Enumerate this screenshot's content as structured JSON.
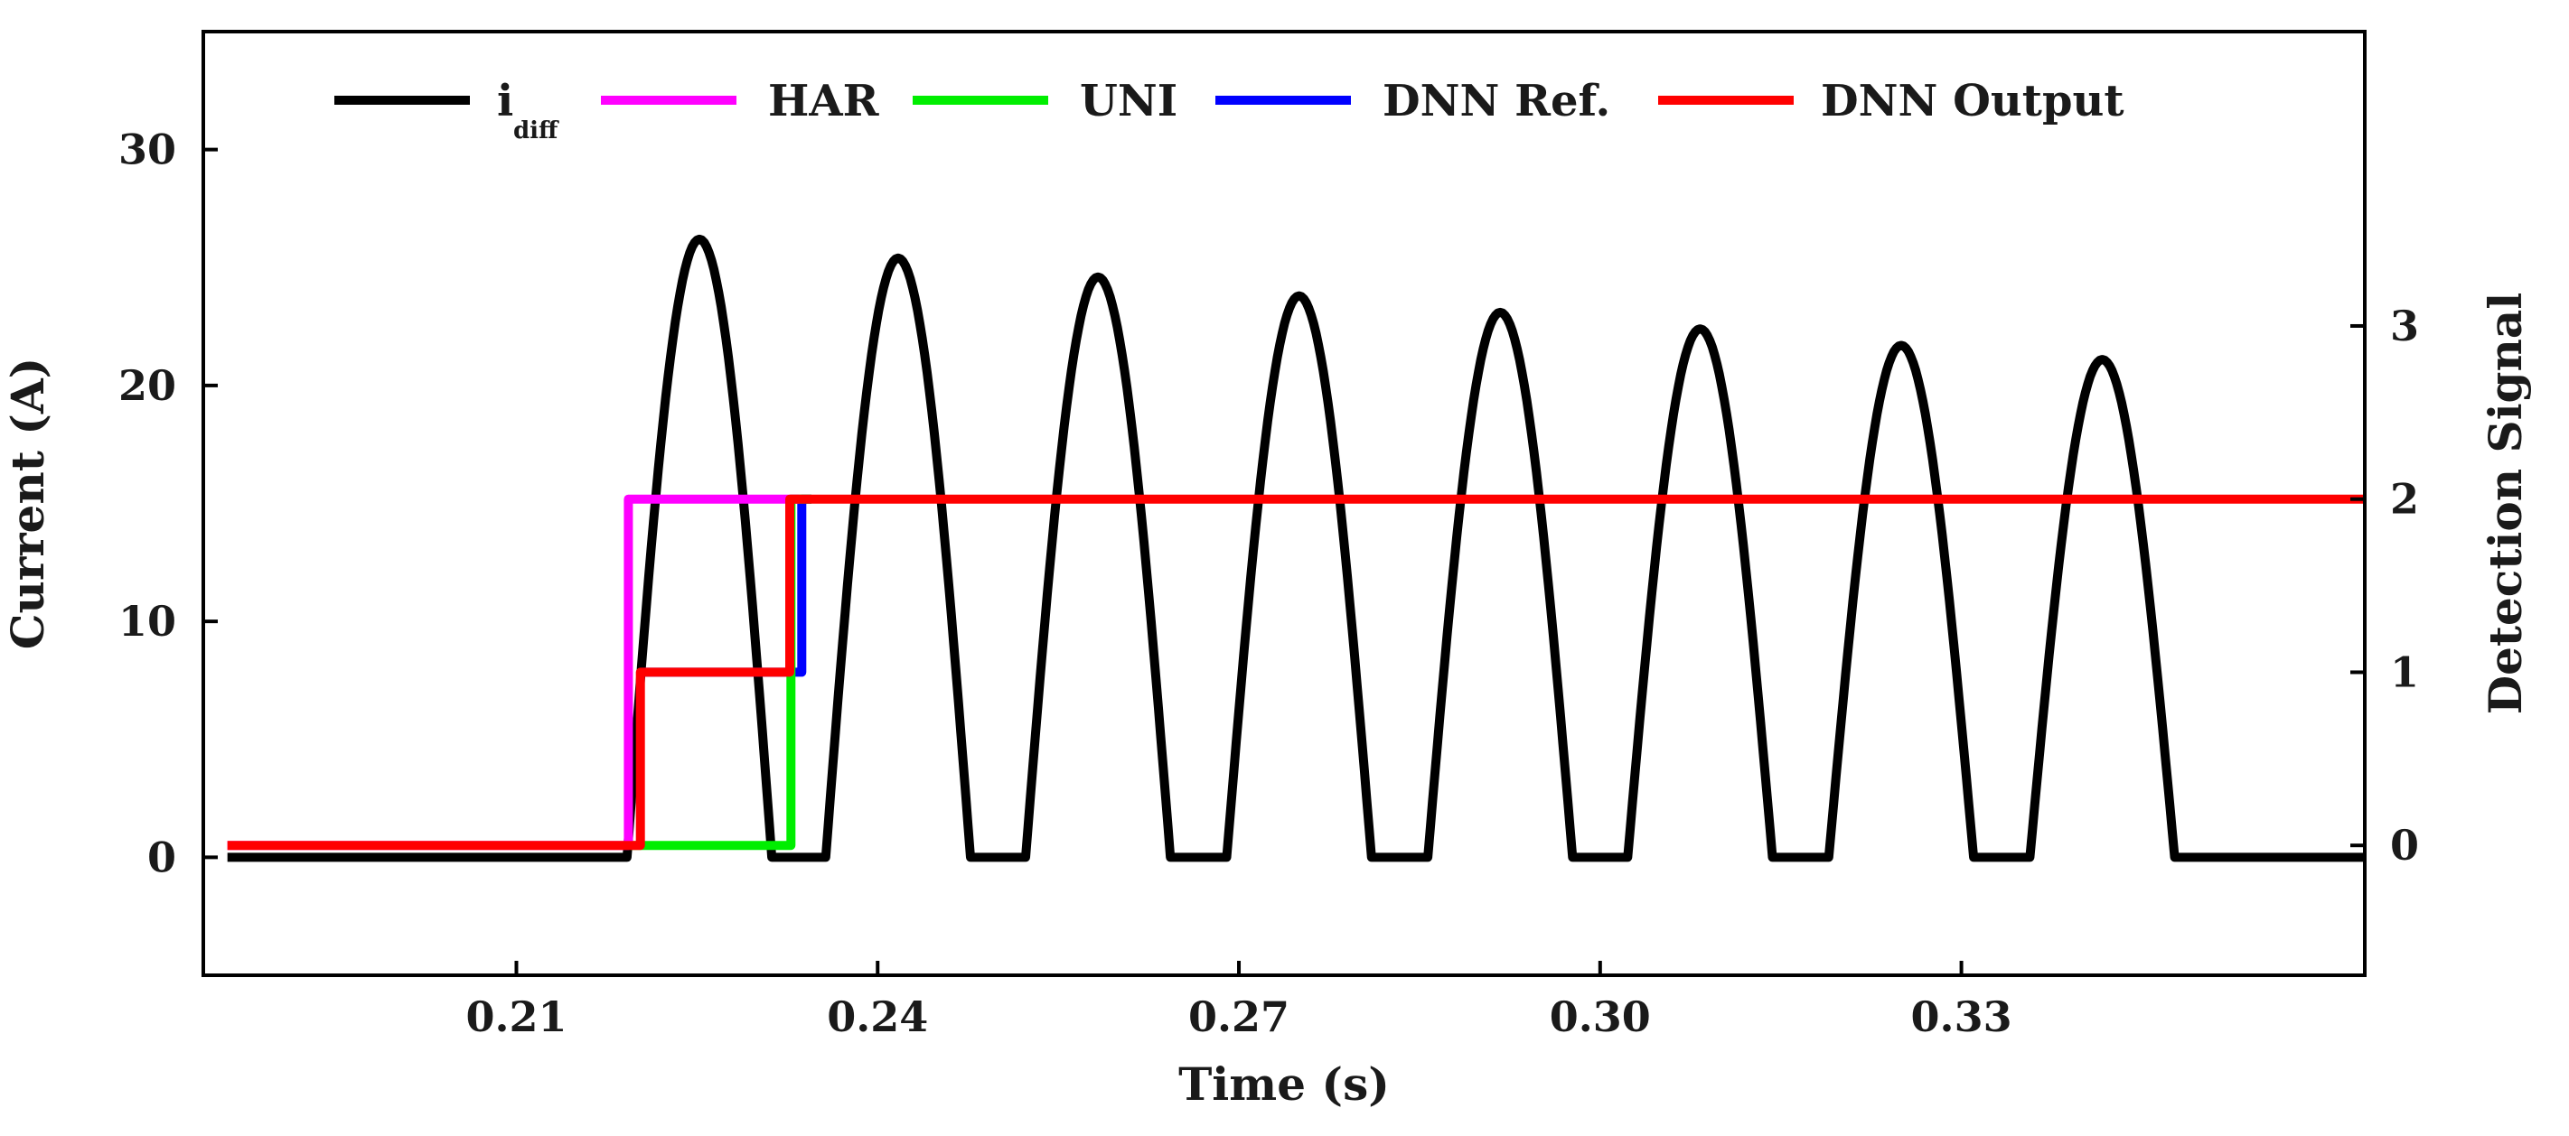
{
  "chart_data": {
    "type": "line",
    "title": "",
    "xlabel": "Time (s)",
    "ylabel": "Current (A)",
    "y2label": "Detection Signal",
    "xlim": [
      0.184,
      0.3635
    ],
    "ylim": [
      -5,
      35
    ],
    "y2lim": [
      -0.75,
      4.7
    ],
    "xticks": [
      0.21,
      0.24,
      0.27,
      0.3,
      0.33
    ],
    "xtick_labels": [
      "0.21",
      "0.24",
      "0.27",
      "0.30",
      "0.33"
    ],
    "yticks": [
      0,
      10,
      20,
      30
    ],
    "ytick_labels": [
      "0",
      "10",
      "20",
      "30"
    ],
    "y2ticks": [
      0,
      1,
      2,
      3
    ],
    "y2tick_labels": [
      "0",
      "1",
      "2",
      "3"
    ],
    "grid": false,
    "legend_position": "top",
    "series": [
      {
        "name": "i",
        "name_sub": "diff",
        "axis": "left",
        "color": "#000000",
        "kind": "rectified_sine",
        "t_start": 0.2192,
        "period": 0.0167,
        "zero_value": 0,
        "peaks": [
          {
            "t": 0.2252,
            "value": 26.2
          },
          {
            "t": 0.2417,
            "value": 25.4
          },
          {
            "t": 0.2583,
            "value": 24.6
          },
          {
            "t": 0.275,
            "value": 23.8
          },
          {
            "t": 0.2917,
            "value": 23.1
          },
          {
            "t": 0.3083,
            "value": 22.4
          },
          {
            "t": 0.325,
            "value": 21.7
          },
          {
            "t": 0.3417,
            "value": 21.1
          }
        ]
      },
      {
        "name": "HAR",
        "axis": "right",
        "color": "#ff00ff",
        "kind": "step",
        "points": [
          [
            0.186,
            0
          ],
          [
            0.2193,
            0
          ],
          [
            0.2193,
            2
          ],
          [
            0.2335,
            2
          ]
        ]
      },
      {
        "name": "UNI",
        "axis": "right",
        "color": "#00ee00",
        "kind": "step",
        "points": [
          [
            0.2195,
            0
          ],
          [
            0.2328,
            0
          ],
          [
            0.2328,
            2
          ],
          [
            0.2345,
            2
          ]
        ]
      },
      {
        "name": "DNN Ref.",
        "axis": "right",
        "color": "#0000ff",
        "kind": "step",
        "points": [
          [
            0.2205,
            1
          ],
          [
            0.2337,
            1
          ],
          [
            0.2337,
            2
          ],
          [
            0.2345,
            2
          ]
        ]
      },
      {
        "name": "DNN Output",
        "axis": "right",
        "color": "#ff0000",
        "kind": "step",
        "points": [
          [
            0.186,
            0
          ],
          [
            0.2203,
            0
          ],
          [
            0.2203,
            1
          ],
          [
            0.2327,
            1
          ],
          [
            0.2327,
            2
          ],
          [
            0.3635,
            2
          ]
        ]
      }
    ]
  }
}
